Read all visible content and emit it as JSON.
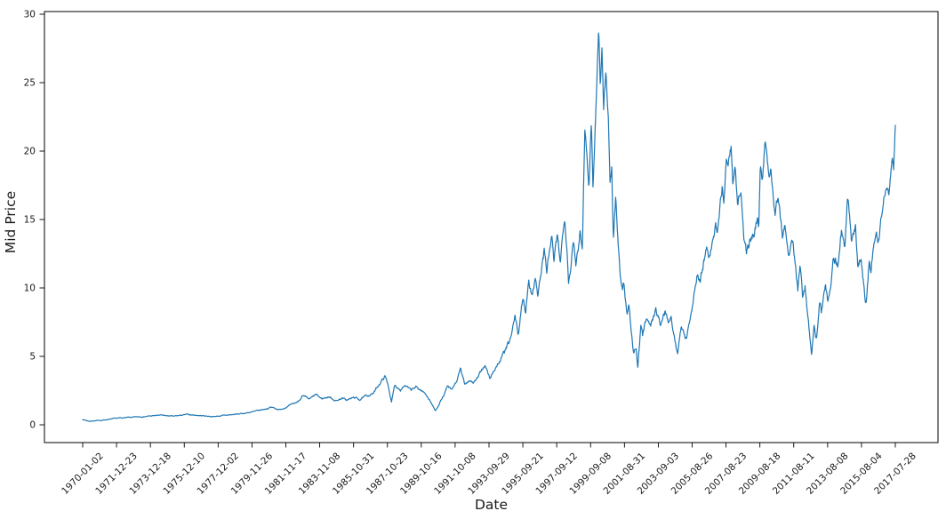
{
  "figure": {
    "background": "#ffffff"
  },
  "chart_data": {
    "type": "line",
    "title": "",
    "xlabel": "Date",
    "ylabel": "Mid Price",
    "grid": false,
    "legend": null,
    "line_color": "#1f77b4",
    "axis_color": "#1a1a1a",
    "spine_color": "#000000",
    "yticks": [
      0,
      5,
      10,
      15,
      20,
      25,
      30
    ],
    "ylim": [
      -1.3,
      30.2
    ],
    "x_range": [
      "1970-01-02",
      "2017-07-28"
    ],
    "xticklabels": [
      "1970-01-02",
      "1971-12-23",
      "1973-12-18",
      "1975-12-10",
      "1977-12-02",
      "1979-11-26",
      "1981-11-17",
      "1983-11-08",
      "1985-10-31",
      "1987-10-23",
      "1989-10-16",
      "1991-10-08",
      "1993-09-29",
      "1995-09-21",
      "1997-09-12",
      "1999-09-08",
      "2001-08-31",
      "2003-09-03",
      "2005-08-26",
      "2007-08-23",
      "2009-08-18",
      "2011-08-11",
      "2013-08-08",
      "2015-08-04",
      "2017-07-28"
    ],
    "series": [
      {
        "name": "Mid Price",
        "anchors": [
          [
            0.0,
            0.39
          ],
          [
            0.008,
            0.26
          ],
          [
            0.016,
            0.3
          ],
          [
            0.024,
            0.33
          ],
          [
            0.035,
            0.42
          ],
          [
            0.046,
            0.5
          ],
          [
            0.062,
            0.55
          ],
          [
            0.079,
            0.62
          ],
          [
            0.095,
            0.7
          ],
          [
            0.112,
            0.62
          ],
          [
            0.128,
            0.75
          ],
          [
            0.144,
            0.68
          ],
          [
            0.161,
            0.6
          ],
          [
            0.177,
            0.7
          ],
          [
            0.194,
            0.8
          ],
          [
            0.21,
            0.95
          ],
          [
            0.221,
            1.1
          ],
          [
            0.232,
            1.28
          ],
          [
            0.243,
            1.1
          ],
          [
            0.251,
            1.32
          ],
          [
            0.257,
            1.45
          ],
          [
            0.265,
            1.7
          ],
          [
            0.27,
            2.1
          ],
          [
            0.279,
            1.85
          ],
          [
            0.287,
            2.2
          ],
          [
            0.294,
            1.9
          ],
          [
            0.303,
            2.05
          ],
          [
            0.312,
            1.75
          ],
          [
            0.319,
            1.95
          ],
          [
            0.325,
            1.8
          ],
          [
            0.334,
            2.0
          ],
          [
            0.341,
            1.85
          ],
          [
            0.349,
            2.1
          ],
          [
            0.358,
            2.3
          ],
          [
            0.364,
            2.9
          ],
          [
            0.372,
            3.55
          ],
          [
            0.376,
            2.9
          ],
          [
            0.38,
            1.65
          ],
          [
            0.384,
            2.9
          ],
          [
            0.391,
            2.6
          ],
          [
            0.396,
            2.9
          ],
          [
            0.404,
            2.5
          ],
          [
            0.41,
            2.75
          ],
          [
            0.417,
            2.5
          ],
          [
            0.423,
            2.2
          ],
          [
            0.429,
            1.6
          ],
          [
            0.434,
            1.0
          ],
          [
            0.44,
            1.7
          ],
          [
            0.445,
            2.2
          ],
          [
            0.449,
            2.8
          ],
          [
            0.454,
            2.5
          ],
          [
            0.461,
            3.3
          ],
          [
            0.465,
            4.05
          ],
          [
            0.47,
            2.95
          ],
          [
            0.476,
            3.3
          ],
          [
            0.481,
            3.1
          ],
          [
            0.487,
            3.5
          ],
          [
            0.495,
            4.4
          ],
          [
            0.501,
            3.35
          ],
          [
            0.508,
            4.2
          ],
          [
            0.513,
            4.6
          ],
          [
            0.519,
            5.3
          ],
          [
            0.524,
            5.9
          ],
          [
            0.528,
            6.6
          ],
          [
            0.532,
            7.9
          ],
          [
            0.536,
            6.6
          ],
          [
            0.542,
            9.4
          ],
          [
            0.545,
            8.2
          ],
          [
            0.549,
            10.9
          ],
          [
            0.553,
            9.2
          ],
          [
            0.557,
            11.1
          ],
          [
            0.56,
            9.5
          ],
          [
            0.565,
            11.5
          ],
          [
            0.568,
            12.7
          ],
          [
            0.571,
            11.2
          ],
          [
            0.577,
            13.7
          ],
          [
            0.58,
            11.8
          ],
          [
            0.584,
            13.6
          ],
          [
            0.588,
            12.0
          ],
          [
            0.593,
            15.6
          ],
          [
            0.596,
            13.0
          ],
          [
            0.598,
            10.6
          ],
          [
            0.604,
            13.2
          ],
          [
            0.607,
            11.7
          ],
          [
            0.612,
            14.3
          ],
          [
            0.615,
            13.4
          ],
          [
            0.618,
            22.1
          ],
          [
            0.623,
            17.4
          ],
          [
            0.626,
            22.4
          ],
          [
            0.628,
            17.2
          ],
          [
            0.631,
            22.2
          ],
          [
            0.635,
            29.0
          ],
          [
            0.637,
            24.5
          ],
          [
            0.639,
            27.8
          ],
          [
            0.641,
            23.5
          ],
          [
            0.644,
            25.8
          ],
          [
            0.647,
            22.0
          ],
          [
            0.649,
            17.8
          ],
          [
            0.651,
            18.9
          ],
          [
            0.653,
            13.8
          ],
          [
            0.656,
            16.8
          ],
          [
            0.661,
            11.0
          ],
          [
            0.664,
            9.8
          ],
          [
            0.666,
            10.4
          ],
          [
            0.67,
            7.9
          ],
          [
            0.672,
            8.8
          ],
          [
            0.675,
            6.6
          ],
          [
            0.678,
            5.1
          ],
          [
            0.681,
            5.8
          ],
          [
            0.683,
            4.2
          ],
          [
            0.687,
            7.4
          ],
          [
            0.689,
            6.5
          ],
          [
            0.694,
            8.0
          ],
          [
            0.699,
            7.2
          ],
          [
            0.705,
            8.5
          ],
          [
            0.711,
            7.3
          ],
          [
            0.717,
            8.3
          ],
          [
            0.721,
            7.5
          ],
          [
            0.724,
            8.2
          ],
          [
            0.728,
            6.5
          ],
          [
            0.732,
            5.3
          ],
          [
            0.737,
            7.2
          ],
          [
            0.743,
            6.3
          ],
          [
            0.748,
            7.9
          ],
          [
            0.752,
            9.5
          ],
          [
            0.755,
            10.5
          ],
          [
            0.757,
            11.2
          ],
          [
            0.76,
            10.6
          ],
          [
            0.768,
            12.9
          ],
          [
            0.771,
            12.0
          ],
          [
            0.779,
            14.6
          ],
          [
            0.781,
            13.8
          ],
          [
            0.787,
            17.4
          ],
          [
            0.789,
            16.4
          ],
          [
            0.792,
            19.7
          ],
          [
            0.794,
            19.0
          ],
          [
            0.798,
            20.3
          ],
          [
            0.8,
            17.9
          ],
          [
            0.803,
            18.9
          ],
          [
            0.806,
            15.6
          ],
          [
            0.81,
            17.1
          ],
          [
            0.814,
            13.3
          ],
          [
            0.817,
            12.5
          ],
          [
            0.822,
            13.6
          ],
          [
            0.826,
            14.2
          ],
          [
            0.83,
            15.2
          ],
          [
            0.832,
            14.6
          ],
          [
            0.834,
            18.9
          ],
          [
            0.836,
            17.9
          ],
          [
            0.84,
            20.8
          ],
          [
            0.845,
            18.1
          ],
          [
            0.847,
            18.9
          ],
          [
            0.852,
            15.6
          ],
          [
            0.856,
            17.0
          ],
          [
            0.861,
            13.7
          ],
          [
            0.864,
            14.8
          ],
          [
            0.869,
            12.9
          ],
          [
            0.874,
            13.5
          ],
          [
            0.88,
            9.9
          ],
          [
            0.883,
            11.4
          ],
          [
            0.886,
            9.0
          ],
          [
            0.889,
            10.1
          ],
          [
            0.894,
            6.8
          ],
          [
            0.897,
            4.9
          ],
          [
            0.9,
            7.2
          ],
          [
            0.903,
            6.4
          ],
          [
            0.907,
            9.2
          ],
          [
            0.909,
            8.3
          ],
          [
            0.914,
            10.1
          ],
          [
            0.917,
            8.8
          ],
          [
            0.921,
            10.5
          ],
          [
            0.924,
            12.7
          ],
          [
            0.929,
            11.6
          ],
          [
            0.934,
            14.2
          ],
          [
            0.938,
            13.4
          ],
          [
            0.941,
            16.9
          ],
          [
            0.946,
            13.5
          ],
          [
            0.951,
            14.5
          ],
          [
            0.954,
            11.4
          ],
          [
            0.958,
            12.3
          ],
          [
            0.962,
            9.8
          ],
          [
            0.964,
            8.8
          ],
          [
            0.968,
            12.2
          ],
          [
            0.97,
            11.1
          ],
          [
            0.976,
            14.5
          ],
          [
            0.979,
            13.5
          ],
          [
            0.983,
            15.5
          ],
          [
            0.989,
            17.7
          ],
          [
            0.992,
            17.2
          ],
          [
            0.996,
            19.2
          ],
          [
            0.998,
            18.6
          ],
          [
            1.0,
            21.9
          ]
        ]
      }
    ],
    "noise": {
      "seed": 7,
      "samples": 1900,
      "amp_factor": 0.03,
      "amp_base": 0.012,
      "amp_cap": 0.4,
      "persistence": 0.78,
      "step_scale": 0.65
    }
  }
}
